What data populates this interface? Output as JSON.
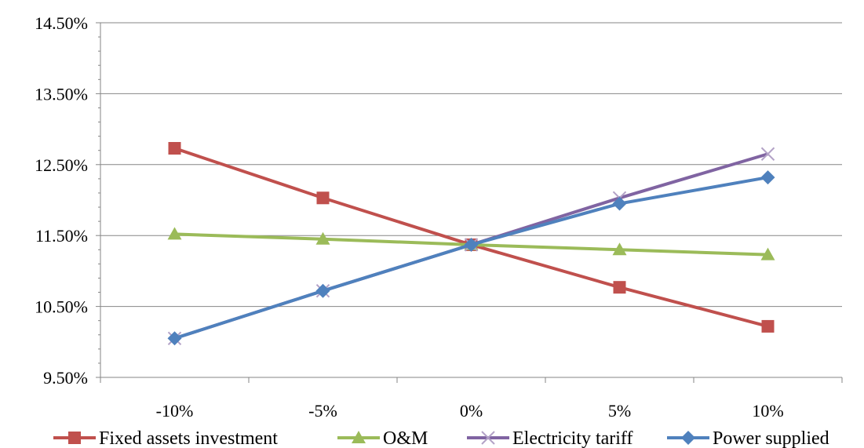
{
  "chart_data": {
    "type": "line",
    "title": "",
    "xlabel": "",
    "ylabel": "",
    "categories": [
      "-10%",
      "-5%",
      "0%",
      "5%",
      "10%"
    ],
    "ylim": [
      9.5,
      14.5
    ],
    "yticks": [
      "9.50%",
      "10.50%",
      "11.50%",
      "12.50%",
      "13.50%",
      "14.50%"
    ],
    "grid": true,
    "legend_position": "bottom",
    "series": [
      {
        "name": "Fixed assets investment",
        "color": "#c0504d",
        "marker": "square",
        "values": [
          12.73,
          12.03,
          11.37,
          10.77,
          10.22
        ]
      },
      {
        "name": "O&M",
        "color": "#9bbb59",
        "marker": "triangle",
        "values": [
          11.52,
          11.45,
          11.37,
          11.3,
          11.23
        ]
      },
      {
        "name": "Electricity tariff",
        "color": "#8064a2",
        "marker": "x",
        "values": [
          10.05,
          10.72,
          11.37,
          12.03,
          12.65
        ]
      },
      {
        "name": "Power supplied",
        "color": "#4f81bd",
        "marker": "diamond",
        "values": [
          10.05,
          10.72,
          11.37,
          11.95,
          12.32
        ]
      }
    ]
  }
}
